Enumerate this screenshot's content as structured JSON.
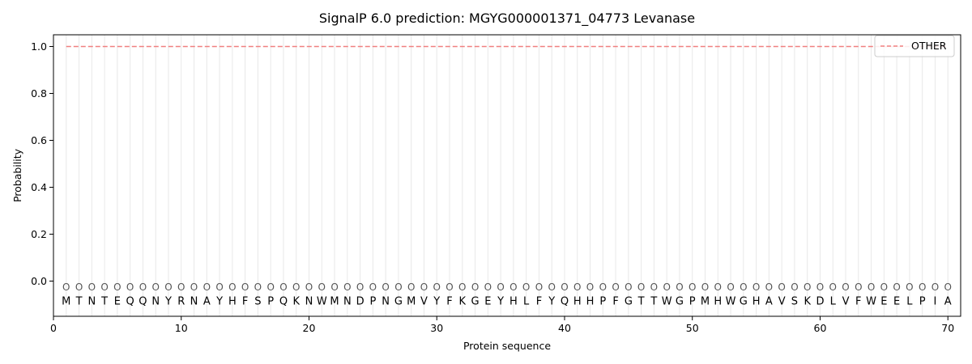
{
  "chart_data": {
    "type": "line",
    "title": "SignalP 6.0 prediction: MGYG000001371_04773 Levanase",
    "xlabel": "Protein sequence",
    "ylabel": "Probability",
    "xlim": [
      0,
      71
    ],
    "ylim": [
      -0.15,
      1.05
    ],
    "x_ticks": [
      0,
      10,
      20,
      30,
      40,
      50,
      60,
      70
    ],
    "y_ticks": [
      0.0,
      0.2,
      0.4,
      0.6,
      0.8,
      1.0
    ],
    "x_tick_labels": [
      "0",
      "10",
      "20",
      "30",
      "40",
      "50",
      "60",
      "70"
    ],
    "y_tick_labels": [
      "0.0",
      "0.2",
      "0.4",
      "0.6",
      "0.8",
      "1.0"
    ],
    "grid": "vertical lines at each residue",
    "legend_position": "top-right",
    "sequence": [
      "M",
      "T",
      "N",
      "T",
      "E",
      "Q",
      "Q",
      "N",
      "Y",
      "R",
      "N",
      "A",
      "Y",
      "H",
      "F",
      "S",
      "P",
      "Q",
      "K",
      "N",
      "W",
      "M",
      "N",
      "D",
      "P",
      "N",
      "G",
      "M",
      "V",
      "Y",
      "F",
      "K",
      "G",
      "E",
      "Y",
      "H",
      "L",
      "F",
      "Y",
      "Q",
      "H",
      "H",
      "P",
      "F",
      "G",
      "T",
      "T",
      "W",
      "G",
      "P",
      "M",
      "H",
      "W",
      "G",
      "H",
      "A",
      "V",
      "S",
      "K",
      "D",
      "L",
      "V",
      "F",
      "W",
      "E",
      "E",
      "L",
      "P",
      "I",
      "A"
    ],
    "annotation_marker": "O",
    "series": [
      {
        "name": "OTHER",
        "color": "#f08080",
        "style": "dashed",
        "x_start": 1,
        "x_end": 70,
        "values": [
          1.0
        ]
      }
    ]
  }
}
